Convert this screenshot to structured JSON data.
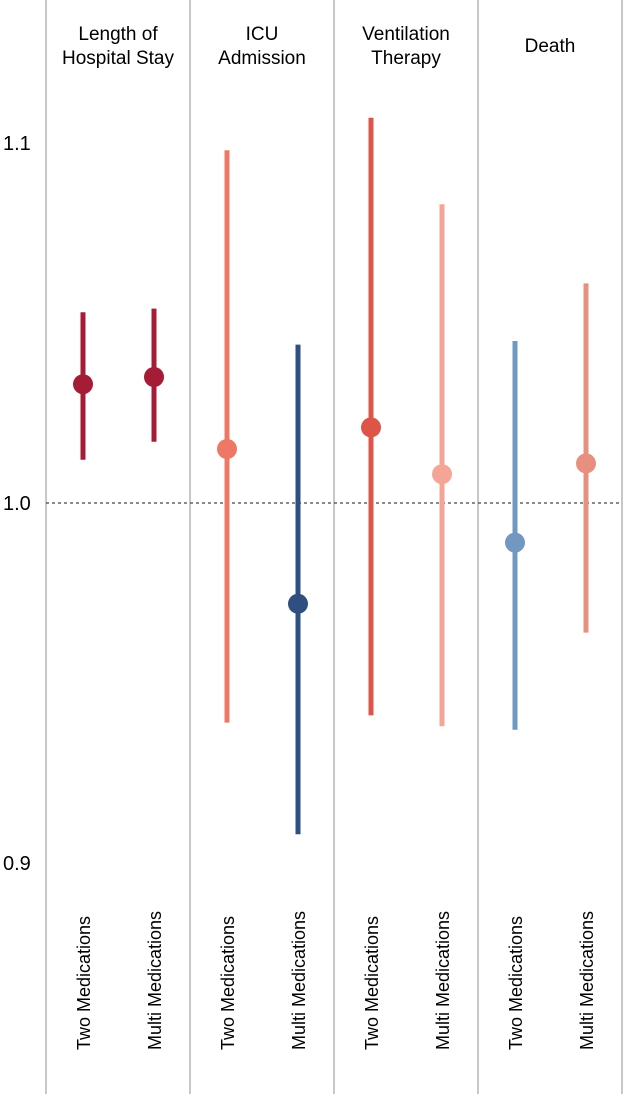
{
  "chart_data": {
    "type": "scatter",
    "subtype": "forest-plot",
    "title": "",
    "xlabel": "",
    "ylabel": "",
    "ylim": [
      0.9,
      1.12
    ],
    "yticks": [
      0.9,
      1.0,
      1.1
    ],
    "ytick_labels": [
      "0.9",
      "1.0",
      "1.1"
    ],
    "reference_line": 1.0,
    "grid": false,
    "panels": [
      {
        "title_lines": [
          "Length of",
          "Hospital Stay"
        ],
        "points": [
          {
            "label": "Two Medications",
            "estimate": 1.033,
            "lower": 1.012,
            "upper": 1.053,
            "color": "#a51c36"
          },
          {
            "label": "Multi Medications",
            "estimate": 1.035,
            "lower": 1.017,
            "upper": 1.054,
            "color": "#a51c36"
          }
        ]
      },
      {
        "title_lines": [
          "ICU",
          "Admission"
        ],
        "points": [
          {
            "label": "Two Medications",
            "estimate": 1.015,
            "lower": 0.939,
            "upper": 1.098,
            "color": "#ed7866"
          },
          {
            "label": "Multi Medications",
            "estimate": 0.972,
            "lower": 0.908,
            "upper": 1.044,
            "color": "#2f4f80"
          }
        ]
      },
      {
        "title_lines": [
          "Ventilation",
          "Therapy"
        ],
        "points": [
          {
            "label": "Two Medications",
            "estimate": 1.021,
            "lower": 0.941,
            "upper": 1.107,
            "color": "#dd5448"
          },
          {
            "label": "Multi Medications",
            "estimate": 1.008,
            "lower": 0.938,
            "upper": 1.083,
            "color": "#f4a595"
          }
        ]
      },
      {
        "title_lines": [
          "Death"
        ],
        "points": [
          {
            "label": "Two Medications",
            "estimate": 0.989,
            "lower": 0.937,
            "upper": 1.045,
            "color": "#7098c0"
          },
          {
            "label": "Multi Medications",
            "estimate": 1.011,
            "lower": 0.964,
            "upper": 1.061,
            "color": "#e89080"
          }
        ]
      }
    ]
  }
}
